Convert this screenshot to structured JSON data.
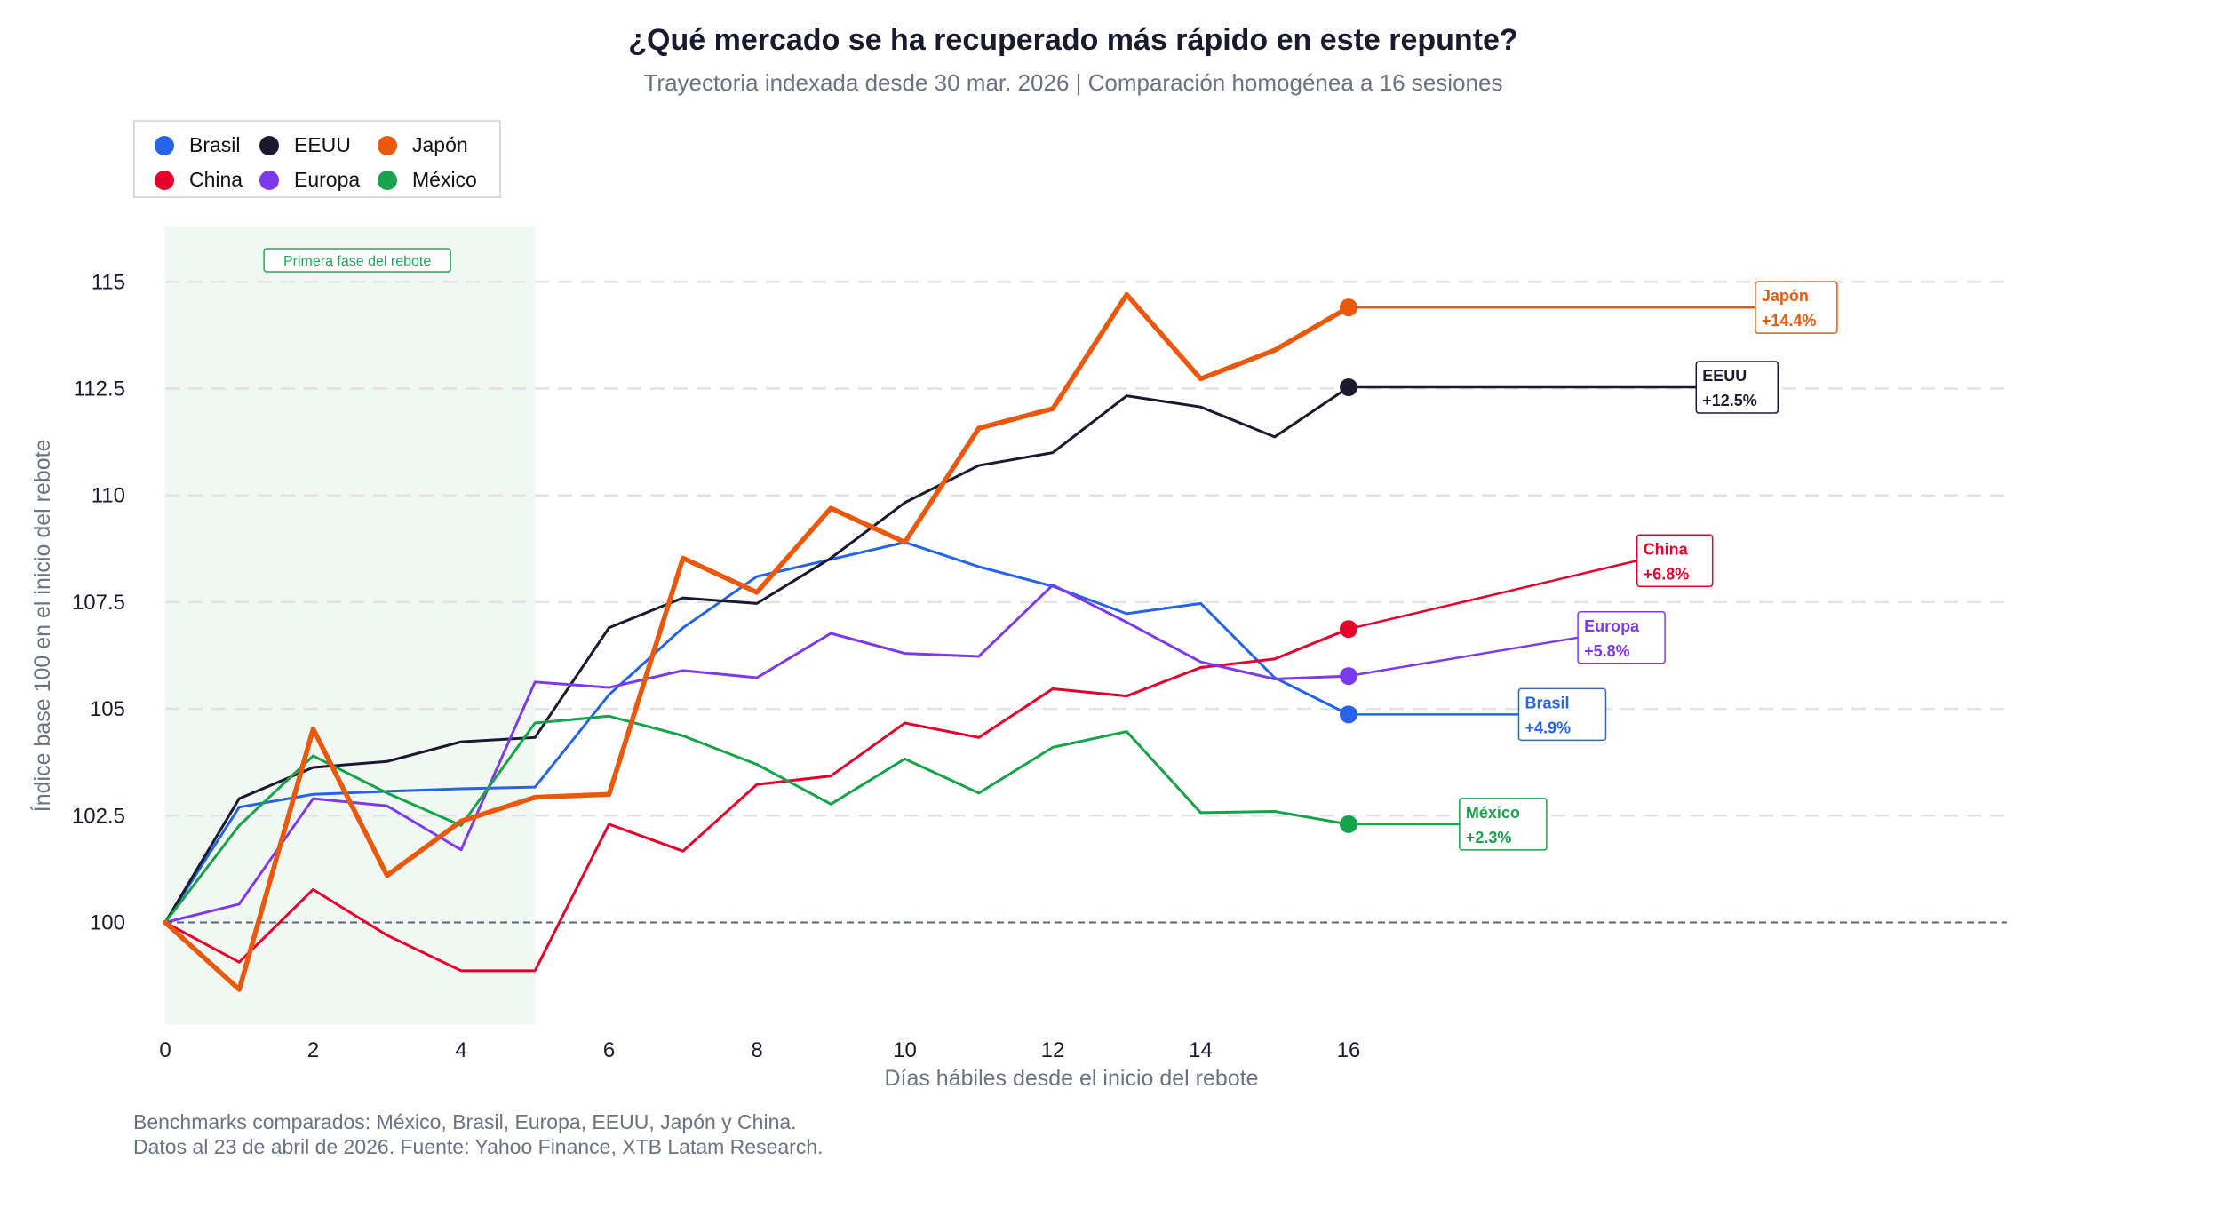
{
  "title": "¿Qué mercado se ha recuperado más rápido en este repunte?",
  "subtitle": "Trayectoria indexada desde 30 mar. 2026 | Comparación homogénea a 16 sesiones",
  "footer": [
    "Benchmarks comparados: México, Brasil, Europa, EEUU, Japón y China.",
    "Datos al 23 de abril de 2026. Fuente: Yahoo Finance, XTB Latam Research."
  ],
  "legend": [
    {
      "name": "Brasil",
      "color": "#2563eb"
    },
    {
      "name": "EEUU",
      "color": "#1a1a2e"
    },
    {
      "name": "Japón",
      "color": "#ea580c"
    },
    {
      "name": "China",
      "color": "#e4002b"
    },
    {
      "name": "Europa",
      "color": "#7c3aed"
    },
    {
      "name": "México",
      "color": "#16a34a"
    }
  ],
  "chart_data": {
    "type": "line",
    "xlabel": "Días hábiles desde el inicio del rebote",
    "ylabel": "Índice base 100 en el inicio del rebote",
    "x": [
      0,
      1,
      2,
      3,
      4,
      5,
      6,
      7,
      8,
      9,
      10,
      11,
      12,
      13,
      14,
      15,
      16
    ],
    "xticks": [
      0,
      2,
      4,
      6,
      8,
      10,
      12,
      14,
      16
    ],
    "yticks": [
      100,
      102.5,
      105,
      107.5,
      110,
      112.5,
      115
    ],
    "ytick_labels": [
      "100",
      "102.5",
      "105",
      "107.5",
      "110",
      "112.5",
      "115"
    ],
    "xlim": [
      0,
      24.9
    ],
    "ylim": [
      97.6,
      116.3
    ],
    "grid": "horizontal dashed",
    "legend_position": "top-left",
    "baseline": 100,
    "shaded_region": {
      "x": [
        0,
        5
      ],
      "label": "Primera fase del rebote",
      "color": "#f1f7f2"
    },
    "series": [
      {
        "name": "Brasil",
        "color": "#2563eb",
        "width": 3,
        "end_label": "+4.9%",
        "values": [
          100,
          102.7,
          103.0,
          103.07,
          103.13,
          103.17,
          105.33,
          106.9,
          108.1,
          108.5,
          108.9,
          108.33,
          107.87,
          107.23,
          107.47,
          105.73,
          104.87
        ]
      },
      {
        "name": "EEUU",
        "color": "#1a1a2e",
        "width": 3,
        "end_label": "+12.5%",
        "values": [
          100,
          102.9,
          103.63,
          103.77,
          104.23,
          104.33,
          106.9,
          107.6,
          107.47,
          108.53,
          109.83,
          110.7,
          111.0,
          112.33,
          112.07,
          111.37,
          112.53
        ]
      },
      {
        "name": "China",
        "color": "#e4002b",
        "width": 3,
        "end_label": "+6.8%",
        "values": [
          100,
          99.07,
          100.77,
          99.7,
          98.87,
          98.87,
          102.3,
          101.67,
          103.23,
          103.43,
          104.67,
          104.33,
          105.47,
          105.3,
          105.97,
          106.17,
          106.87
        ]
      },
      {
        "name": "Europa",
        "color": "#7c3aed",
        "width": 3,
        "end_label": "+5.8%",
        "values": [
          100,
          100.43,
          102.9,
          102.73,
          101.7,
          105.63,
          105.5,
          105.9,
          105.73,
          106.77,
          106.3,
          106.23,
          107.9,
          107.03,
          106.1,
          105.7,
          105.77
        ]
      },
      {
        "name": "México",
        "color": "#16a34a",
        "width": 3,
        "end_label": "+2.3%",
        "values": [
          100,
          102.27,
          103.9,
          103.03,
          102.27,
          104.67,
          104.83,
          104.37,
          103.7,
          102.77,
          103.83,
          103.03,
          104.1,
          104.47,
          102.57,
          102.6,
          102.3
        ]
      },
      {
        "name": "Japón",
        "color": "#ea580c",
        "width": 5.5,
        "end_label": "+14.4%",
        "values": [
          100,
          98.43,
          104.53,
          101.1,
          102.37,
          102.93,
          103.0,
          108.53,
          107.73,
          109.7,
          108.9,
          111.57,
          112.03,
          114.7,
          112.73,
          113.4,
          114.4
        ]
      }
    ]
  }
}
